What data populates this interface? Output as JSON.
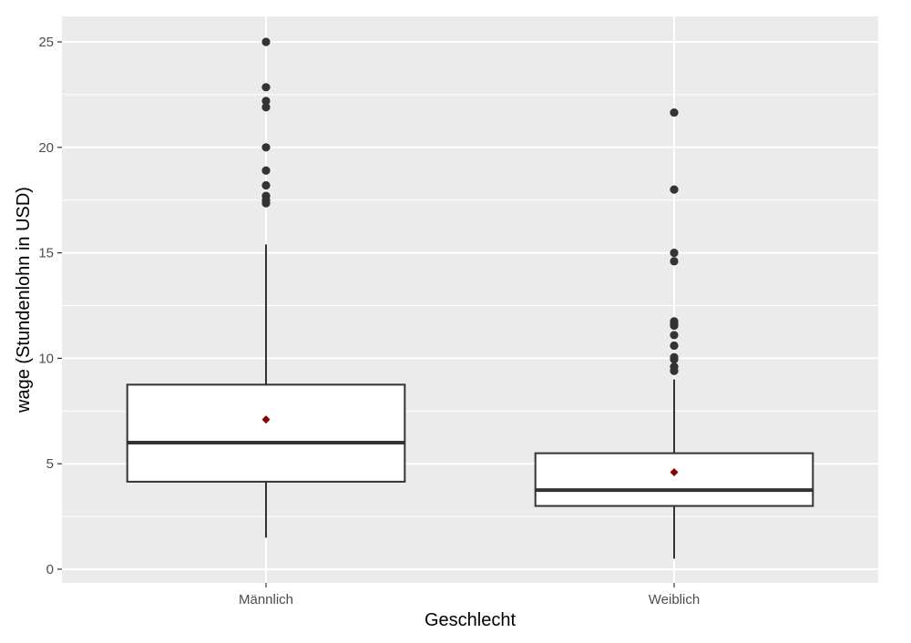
{
  "chart_data": {
    "type": "boxplot",
    "title": "",
    "xlabel": "Geschlecht",
    "ylabel": "wage (Stundenlohn in USD)",
    "ylim": [
      -0.9,
      25.8
    ],
    "y_ticks": [
      0,
      5,
      10,
      15,
      20,
      25
    ],
    "grid": true,
    "legend": "none",
    "colors": {
      "panel_background": "#ebebeb",
      "grid_line": "#ffffff",
      "box_fill": "#ffffff",
      "box_outline": "#333333",
      "outlier": "#333333",
      "mean_marker": "#8b0000"
    },
    "categories": [
      "Männlich",
      "Weiblich"
    ],
    "boxes": [
      {
        "category": "Männlich",
        "whisker_low": 1.5,
        "q1": 4.15,
        "median": 6.0,
        "q3": 8.75,
        "whisker_high": 15.4,
        "mean": 7.1,
        "outliers": [
          17.35,
          17.5,
          17.7,
          18.2,
          18.9,
          20.0,
          21.9,
          22.2,
          22.85,
          25.0
        ]
      },
      {
        "category": "Weiblich",
        "whisker_low": 0.5,
        "q1": 3.0,
        "median": 3.75,
        "q3": 5.5,
        "whisker_high": 9.0,
        "mean": 4.6,
        "outliers": [
          9.4,
          9.6,
          9.95,
          10.05,
          10.6,
          11.1,
          11.55,
          11.65,
          11.75,
          14.6,
          15.0,
          18.0,
          21.65
        ]
      }
    ]
  }
}
